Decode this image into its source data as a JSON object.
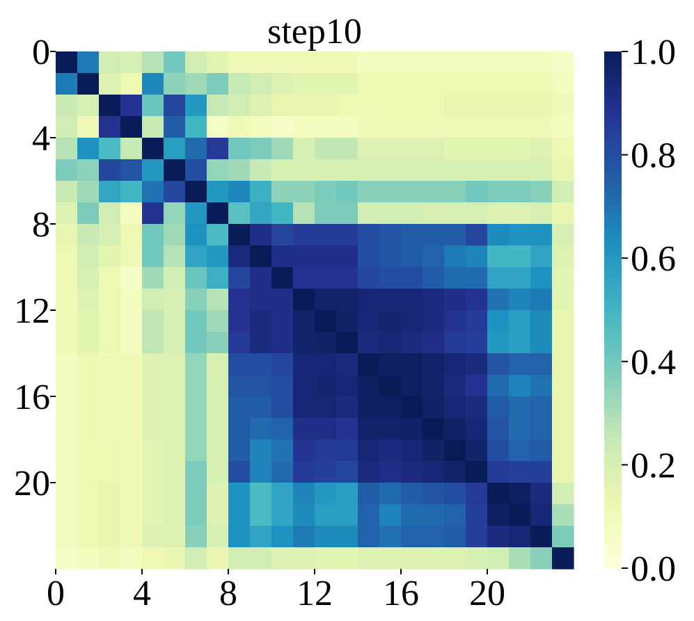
{
  "chart_data": {
    "type": "heatmap",
    "title": "step10",
    "xlabel": "",
    "ylabel": "",
    "colormap": "YlGnBu",
    "colors": [
      "#ffffd9",
      "#edf8b1",
      "#c7e9b4",
      "#7fcdbb",
      "#41b6c4",
      "#1d91c0",
      "#225ea8",
      "#253494",
      "#081d58"
    ],
    "value_range": [
      0.0,
      1.0
    ],
    "x_ticks": [
      0,
      4,
      8,
      12,
      16,
      20
    ],
    "y_ticks": [
      0,
      4,
      8,
      12,
      16,
      20
    ],
    "x_tick_labels": [
      "0",
      "4",
      "8",
      "12",
      "16",
      "20"
    ],
    "y_tick_labels": [
      "0",
      "4",
      "8",
      "12",
      "16",
      "20"
    ],
    "colorbar_ticks": [
      "0.0",
      "0.2",
      "0.4",
      "0.6",
      "0.8",
      "1.0"
    ],
    "matrix": [
      [
        1.0,
        0.68,
        0.22,
        0.2,
        0.28,
        0.4,
        0.22,
        0.16,
        0.1,
        0.1,
        0.1,
        0.1,
        0.1,
        0.1,
        0.08,
        0.08,
        0.08,
        0.08,
        0.08,
        0.08,
        0.08,
        0.08,
        0.08,
        0.06
      ],
      [
        0.68,
        1.0,
        0.18,
        0.12,
        0.65,
        0.35,
        0.32,
        0.38,
        0.25,
        0.22,
        0.18,
        0.16,
        0.16,
        0.16,
        0.12,
        0.12,
        0.12,
        0.12,
        0.12,
        0.12,
        0.12,
        0.12,
        0.12,
        0.08
      ],
      [
        0.24,
        0.2,
        1.0,
        0.88,
        0.42,
        0.82,
        0.6,
        0.25,
        0.22,
        0.18,
        0.14,
        0.14,
        0.14,
        0.12,
        0.12,
        0.12,
        0.12,
        0.12,
        0.14,
        0.14,
        0.14,
        0.14,
        0.14,
        0.1
      ],
      [
        0.22,
        0.1,
        0.88,
        1.0,
        0.25,
        0.76,
        0.5,
        0.06,
        0.1,
        0.08,
        0.05,
        0.08,
        0.08,
        0.08,
        0.1,
        0.1,
        0.1,
        0.1,
        0.1,
        0.1,
        0.1,
        0.1,
        0.1,
        0.08
      ],
      [
        0.28,
        0.62,
        0.48,
        0.25,
        1.0,
        0.58,
        0.72,
        0.86,
        0.4,
        0.38,
        0.32,
        0.2,
        0.26,
        0.26,
        0.18,
        0.18,
        0.18,
        0.18,
        0.16,
        0.16,
        0.16,
        0.16,
        0.18,
        0.12
      ],
      [
        0.38,
        0.35,
        0.82,
        0.78,
        0.6,
        1.0,
        0.8,
        0.34,
        0.32,
        0.25,
        0.2,
        0.2,
        0.2,
        0.2,
        0.2,
        0.2,
        0.2,
        0.2,
        0.2,
        0.2,
        0.2,
        0.2,
        0.2,
        0.14
      ],
      [
        0.24,
        0.32,
        0.55,
        0.5,
        0.7,
        0.82,
        1.0,
        0.6,
        0.65,
        0.52,
        0.35,
        0.35,
        0.38,
        0.4,
        0.36,
        0.36,
        0.36,
        0.36,
        0.36,
        0.4,
        0.38,
        0.38,
        0.36,
        0.22
      ],
      [
        0.18,
        0.38,
        0.22,
        0.08,
        0.88,
        0.34,
        0.6,
        1.0,
        0.45,
        0.55,
        0.5,
        0.28,
        0.38,
        0.38,
        0.22,
        0.22,
        0.22,
        0.2,
        0.2,
        0.2,
        0.18,
        0.18,
        0.2,
        0.14
      ],
      [
        0.14,
        0.24,
        0.2,
        0.12,
        0.4,
        0.32,
        0.62,
        0.48,
        1.0,
        0.9,
        0.82,
        0.86,
        0.86,
        0.86,
        0.8,
        0.78,
        0.76,
        0.76,
        0.76,
        0.82,
        0.64,
        0.62,
        0.62,
        0.2
      ],
      [
        0.12,
        0.22,
        0.16,
        0.1,
        0.4,
        0.28,
        0.56,
        0.6,
        0.92,
        1.0,
        0.9,
        0.9,
        0.9,
        0.9,
        0.8,
        0.78,
        0.76,
        0.74,
        0.68,
        0.66,
        0.5,
        0.5,
        0.56,
        0.18
      ],
      [
        0.12,
        0.2,
        0.12,
        0.06,
        0.32,
        0.22,
        0.42,
        0.52,
        0.82,
        0.9,
        1.0,
        0.88,
        0.88,
        0.88,
        0.82,
        0.8,
        0.8,
        0.76,
        0.72,
        0.72,
        0.56,
        0.56,
        0.62,
        0.16
      ],
      [
        0.1,
        0.18,
        0.12,
        0.08,
        0.22,
        0.2,
        0.36,
        0.28,
        0.88,
        0.9,
        0.9,
        1.0,
        0.96,
        0.96,
        0.94,
        0.94,
        0.94,
        0.92,
        0.9,
        0.88,
        0.7,
        0.66,
        0.68,
        0.16
      ],
      [
        0.1,
        0.16,
        0.12,
        0.08,
        0.26,
        0.2,
        0.4,
        0.32,
        0.88,
        0.92,
        0.9,
        0.96,
        1.0,
        0.97,
        0.94,
        0.95,
        0.94,
        0.92,
        0.88,
        0.86,
        0.62,
        0.58,
        0.64,
        0.14
      ],
      [
        0.1,
        0.16,
        0.12,
        0.08,
        0.26,
        0.2,
        0.4,
        0.36,
        0.86,
        0.92,
        0.9,
        0.96,
        0.97,
        1.0,
        0.92,
        0.94,
        0.92,
        0.9,
        0.86,
        0.84,
        0.6,
        0.58,
        0.64,
        0.14
      ],
      [
        0.08,
        0.12,
        0.1,
        0.1,
        0.18,
        0.18,
        0.34,
        0.2,
        0.8,
        0.8,
        0.82,
        0.94,
        0.94,
        0.92,
        1.0,
        0.98,
        0.98,
        0.96,
        0.94,
        0.92,
        0.78,
        0.74,
        0.74,
        0.14
      ],
      [
        0.08,
        0.12,
        0.1,
        0.1,
        0.18,
        0.18,
        0.34,
        0.2,
        0.78,
        0.78,
        0.8,
        0.94,
        0.95,
        0.94,
        0.98,
        1.0,
        0.98,
        0.96,
        0.92,
        0.88,
        0.72,
        0.66,
        0.7,
        0.14
      ],
      [
        0.08,
        0.12,
        0.1,
        0.1,
        0.18,
        0.18,
        0.34,
        0.2,
        0.76,
        0.76,
        0.8,
        0.94,
        0.94,
        0.92,
        0.98,
        0.98,
        1.0,
        0.97,
        0.94,
        0.92,
        0.76,
        0.72,
        0.74,
        0.14
      ],
      [
        0.08,
        0.12,
        0.1,
        0.1,
        0.18,
        0.18,
        0.34,
        0.2,
        0.76,
        0.72,
        0.74,
        0.9,
        0.9,
        0.88,
        0.96,
        0.96,
        0.97,
        1.0,
        0.97,
        0.94,
        0.78,
        0.72,
        0.74,
        0.14
      ],
      [
        0.08,
        0.12,
        0.12,
        0.1,
        0.16,
        0.18,
        0.34,
        0.2,
        0.76,
        0.66,
        0.7,
        0.88,
        0.86,
        0.86,
        0.94,
        0.92,
        0.94,
        0.97,
        1.0,
        0.96,
        0.8,
        0.74,
        0.76,
        0.14
      ],
      [
        0.08,
        0.12,
        0.12,
        0.1,
        0.16,
        0.18,
        0.38,
        0.2,
        0.8,
        0.66,
        0.72,
        0.86,
        0.84,
        0.82,
        0.92,
        0.9,
        0.92,
        0.94,
        0.96,
        1.0,
        0.86,
        0.84,
        0.84,
        0.14
      ],
      [
        0.08,
        0.12,
        0.14,
        0.1,
        0.16,
        0.18,
        0.38,
        0.18,
        0.62,
        0.48,
        0.56,
        0.66,
        0.6,
        0.58,
        0.76,
        0.72,
        0.76,
        0.78,
        0.8,
        0.86,
        1.0,
        0.98,
        0.92,
        0.22
      ],
      [
        0.08,
        0.12,
        0.14,
        0.1,
        0.16,
        0.18,
        0.38,
        0.18,
        0.62,
        0.48,
        0.56,
        0.64,
        0.58,
        0.58,
        0.74,
        0.66,
        0.72,
        0.72,
        0.74,
        0.84,
        0.98,
        1.0,
        0.94,
        0.3
      ],
      [
        0.08,
        0.12,
        0.14,
        0.1,
        0.18,
        0.18,
        0.36,
        0.2,
        0.62,
        0.56,
        0.62,
        0.68,
        0.64,
        0.64,
        0.74,
        0.7,
        0.74,
        0.74,
        0.76,
        0.84,
        0.92,
        0.94,
        1.0,
        0.38
      ],
      [
        0.06,
        0.08,
        0.1,
        0.08,
        0.12,
        0.14,
        0.22,
        0.14,
        0.22,
        0.22,
        0.18,
        0.18,
        0.16,
        0.16,
        0.18,
        0.18,
        0.18,
        0.18,
        0.18,
        0.2,
        0.22,
        0.3,
        0.36,
        1.0
      ]
    ]
  }
}
